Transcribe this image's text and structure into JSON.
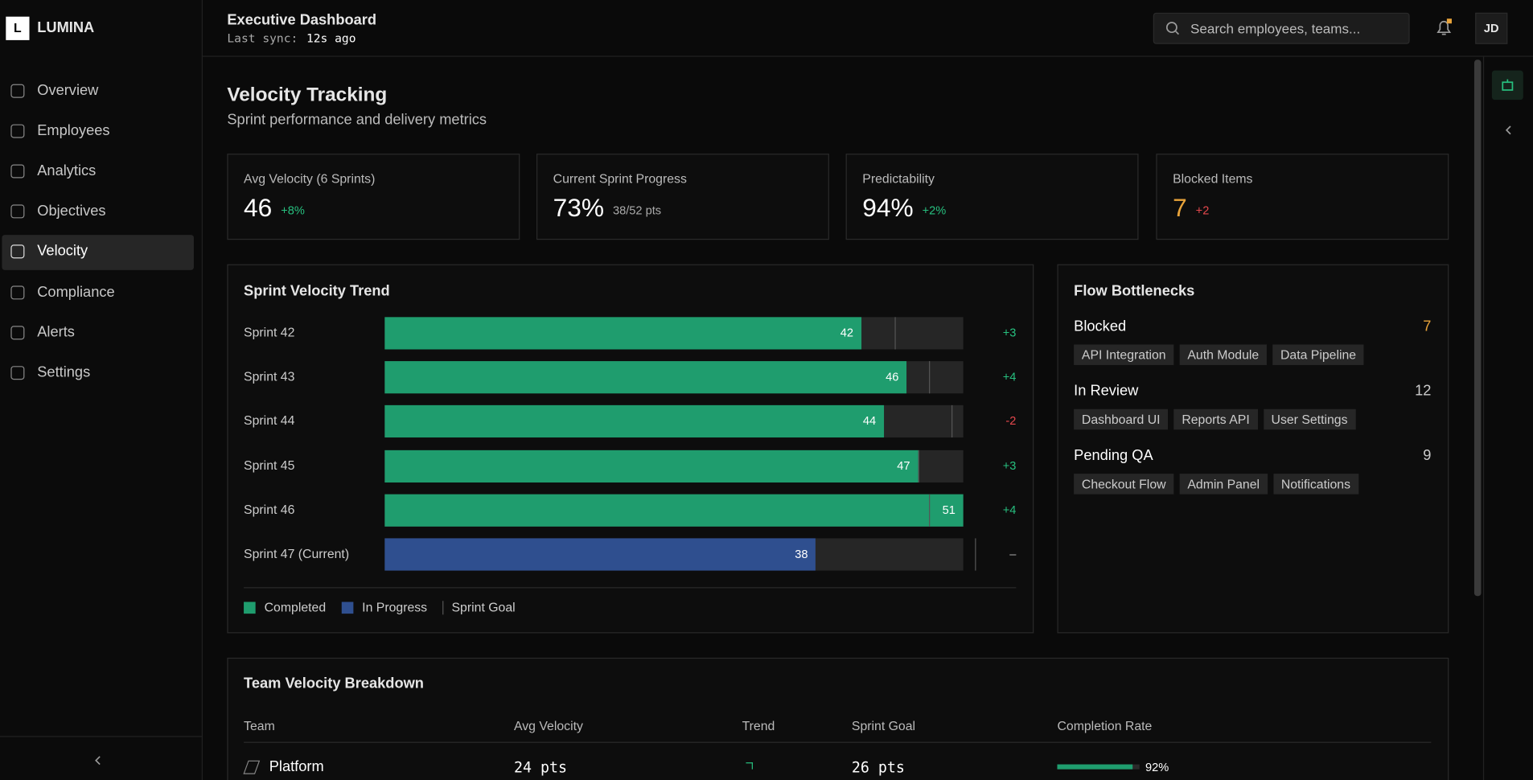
{
  "brand": {
    "logo": "L",
    "name": "LUMINA"
  },
  "nav": [
    "Overview",
    "Employees",
    "Analytics",
    "Objectives",
    "Velocity",
    "Compliance",
    "Alerts",
    "Settings"
  ],
  "header": {
    "title": "Executive Dashboard",
    "sync_label": "Last sync:",
    "sync_value": "12s ago",
    "search_placeholder": "Search employees, teams...",
    "avatar": "JD"
  },
  "page": {
    "title": "Velocity Tracking",
    "subtitle": "Sprint performance and delivery metrics"
  },
  "kpis": [
    {
      "label": "Avg Velocity (6 Sprints)",
      "value": "46",
      "note": "+8%"
    },
    {
      "label": "Current Sprint Progress",
      "value": "73%",
      "note": "38/52 pts"
    },
    {
      "label": "Predictability",
      "value": "94%",
      "note": "+2%"
    },
    {
      "label": "Blocked Items",
      "value": "7",
      "note": "+2"
    }
  ],
  "chart_data": {
    "type": "bar",
    "title": "Sprint Velocity Trend",
    "categories": [
      "Sprint 42",
      "Sprint 43",
      "Sprint 44",
      "Sprint 45",
      "Sprint 46",
      "Sprint 47 (Current)"
    ],
    "series": [
      {
        "name": "Completed",
        "color": "#1f9d6e",
        "values": [
          42,
          46,
          44,
          47,
          51,
          null
        ]
      },
      {
        "name": "In Progress",
        "color": "#2f4f8f",
        "values": [
          null,
          null,
          null,
          null,
          null,
          38
        ]
      },
      {
        "name": "Sprint Goal",
        "color": "#555555",
        "values": [
          45,
          48,
          50,
          47,
          48,
          52
        ]
      }
    ],
    "deltas": [
      "+3",
      "+4",
      "-2",
      "+3",
      "+4",
      "–"
    ],
    "xlim": [
      0,
      51
    ]
  },
  "bottlenecks": {
    "title": "Flow Bottlenecks",
    "groups": [
      {
        "name": "Blocked",
        "count": "7",
        "tags": [
          "API Integration",
          "Auth Module",
          "Data Pipeline"
        ]
      },
      {
        "name": "In Review",
        "count": "12",
        "tags": [
          "Dashboard UI",
          "Reports API",
          "User Settings"
        ]
      },
      {
        "name": "Pending QA",
        "count": "9",
        "tags": [
          "Checkout Flow",
          "Admin Panel",
          "Notifications"
        ]
      }
    ]
  },
  "team_table": {
    "title": "Team Velocity Breakdown",
    "columns": [
      "Team",
      "Avg Velocity",
      "Trend",
      "Sprint Goal",
      "Completion Rate"
    ],
    "rows": [
      {
        "team": "Platform",
        "avg_velocity": "24 pts",
        "sprint_goal": "26 pts",
        "completion": 92,
        "completion_label": "92%"
      }
    ]
  }
}
